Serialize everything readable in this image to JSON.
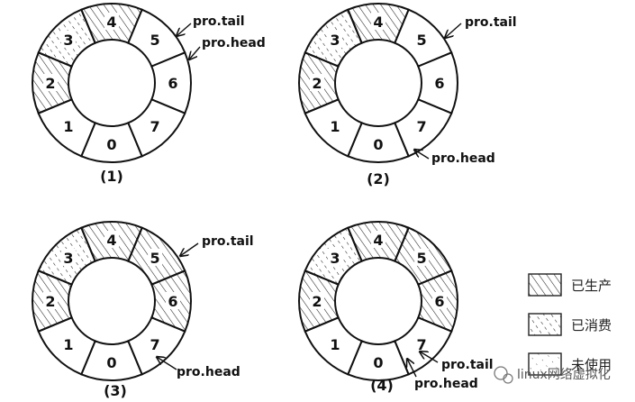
{
  "ring_slot_labels": [
    "0",
    "1",
    "2",
    "3",
    "4",
    "5",
    "6",
    "7"
  ],
  "diagrams": [
    {
      "caption": "(1)",
      "states": {
        "0": "empty",
        "1": "empty",
        "2": "produced",
        "3": "consumed",
        "4": "produced",
        "5": "empty",
        "6": "empty",
        "7": "empty"
      },
      "pointers": [
        {
          "label": "pro.tail",
          "slot_boundary": "4-5"
        },
        {
          "label": "pro.head",
          "slot": "5"
        }
      ]
    },
    {
      "caption": "(2)",
      "states": {
        "0": "empty",
        "1": "empty",
        "2": "produced",
        "3": "consumed",
        "4": "produced",
        "5": "empty",
        "6": "empty",
        "7": "empty"
      },
      "pointers": [
        {
          "label": "pro.tail",
          "slot_boundary": "4-5"
        },
        {
          "label": "pro.head",
          "slot": "7"
        }
      ]
    },
    {
      "caption": "(3)",
      "states": {
        "0": "empty",
        "1": "empty",
        "2": "produced",
        "3": "consumed",
        "4": "produced",
        "5": "produced",
        "6": "produced",
        "7": "empty"
      },
      "pointers": [
        {
          "label": "pro.tail",
          "slot_boundary": "4-5"
        },
        {
          "label": "pro.head",
          "slot": "7"
        }
      ]
    },
    {
      "caption": "(4)",
      "states": {
        "0": "empty",
        "1": "empty",
        "2": "produced",
        "3": "consumed",
        "4": "produced",
        "5": "produced",
        "6": "produced",
        "7": "empty"
      },
      "pointers": [
        {
          "label": "pro.tail",
          "slot": "7"
        },
        {
          "label": "pro.head",
          "slot": "7"
        }
      ]
    }
  ],
  "legend": [
    {
      "label": "已生产",
      "pattern": "produced"
    },
    {
      "label": "已消费",
      "pattern": "consumed"
    },
    {
      "label": "未使用",
      "pattern": "unused"
    }
  ],
  "watermark": "linux网络虚拟化"
}
